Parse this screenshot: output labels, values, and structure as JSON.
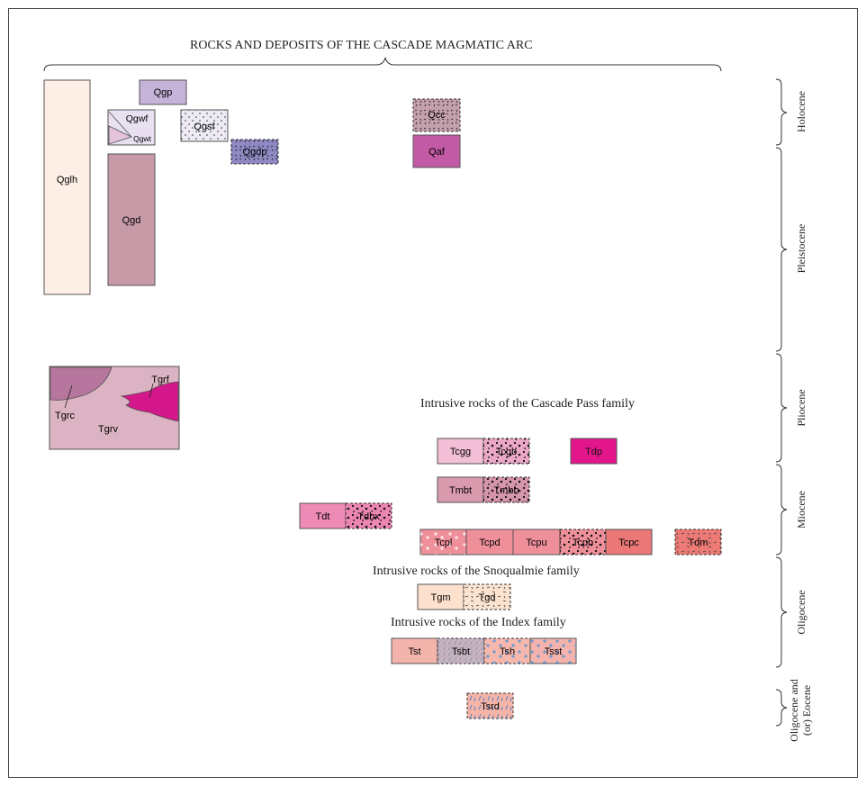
{
  "title": "ROCKS AND DEPOSITS OF THE CASCADE MAGMATIC ARC",
  "headings": {
    "cascade_pass": "Intrusive rocks of the Cascade Pass family",
    "snoqualmie": "Intrusive rocks of the Snoqualmie family",
    "index": "Intrusive rocks of the Index family"
  },
  "epochs": [
    "Holocene",
    "Pleistocene",
    "Pliocene",
    "Miocene",
    "Oligocene",
    "Oligocene and",
    "(or) Eocene"
  ],
  "units": {
    "qglh": "Qglh",
    "qgp": "Qgp",
    "qgwf": "Qgwf",
    "qgwt": "Qgwt",
    "qgsf": "Qgsf",
    "qgdp": "Qgdp",
    "qgd": "Qgd",
    "qcc": "Qcc",
    "qaf": "Qaf",
    "tgrc": "Tgrc",
    "tgrf": "Tgrf",
    "tgrv": "Tgrv",
    "tcgg": "Tcgg",
    "tcgb": "Tcgb",
    "tdp": "Tdp",
    "tmbt": "Tmbt",
    "tmbb": "Tmbb",
    "tdt": "Tdt",
    "tdbx": "Tdbx",
    "tcpl": "Tcpl",
    "tcpd": "Tcpd",
    "tcpu": "Tcpu",
    "tcpb": "Tcpb",
    "tcpc": "Tcpc",
    "tdm": "Tdm",
    "tgm": "Tgm",
    "tgd": "Tgd",
    "tst": "Tst",
    "tsbt": "Tsbt",
    "tsh": "Tsh",
    "tsst": "Tsst",
    "tsrd": "Tsrd"
  },
  "colors": {
    "qglh": "#fdeee6",
    "qgp": "#c5b3d9",
    "qgwf": "#e8dff0",
    "qgsf": "#eeeaf5",
    "qgdp": "#8f89c4",
    "qgd": "#c69aa7",
    "qcc": "#c4a0ad",
    "qaf": "#c25aa6",
    "tgrv": "#dcb3c3",
    "tgrc": "#b7769e",
    "tgrf": "#d4178b",
    "tcgg": "#f2bfd6",
    "tcgb": "#eba8c6",
    "tdp": "#e2168a",
    "tmbt": "#d99aae",
    "tmbb": "#d696aa",
    "tdt": "#ee8ab6",
    "tdbx": "#ec86b2",
    "tcp": "#ef8f9a",
    "tcpc": "#ec7777",
    "tdm": "#ed7a74",
    "tgm": "#fde0cd",
    "tgd": "#fbe3d0",
    "tst": "#f3b4ac",
    "tsbt": "#c9b3c0",
    "tsh": "#f6b8ad",
    "tsst": "#f4b3ac",
    "tsrd": "#f5b4a8"
  }
}
